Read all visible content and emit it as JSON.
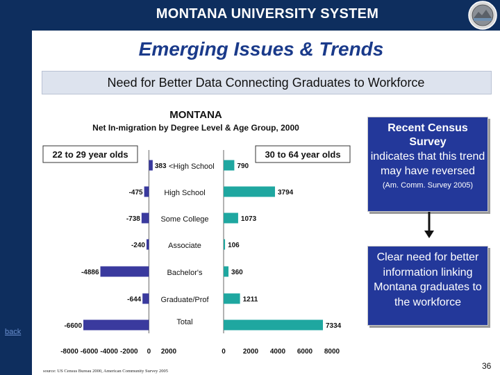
{
  "header": {
    "system_title": "MONTANA UNIVERSITY SYSTEM",
    "seal_icon": "state-seal-icon"
  },
  "slide": {
    "title": "Emerging Issues & Trends",
    "subtitle": "Need for Better Data Connecting Graduates to Workforce",
    "back_link": "back",
    "page_number": "36"
  },
  "callouts": {
    "census": {
      "heading": "Recent Census Survey",
      "body": "indicates that this trend may have reversed",
      "citation": "(Am. Comm. Survey 2005)"
    },
    "need": {
      "body": "Clear need for better information linking Montana graduates to the workforce"
    },
    "arrow_icon": "down-arrow-icon"
  },
  "chart_data": {
    "type": "bar",
    "title": "MONTANA",
    "subtitle": "Net In-migration by Degree Level & Age Group, 2000",
    "categories": [
      "<High School",
      "High School",
      "Some College",
      "Associate",
      "Bachelor's",
      "Graduate/Prof",
      "Total"
    ],
    "source": "source:  US Census Bureau 2000, American Community Survey 2005",
    "series": [
      {
        "name": "22 to 29 year olds",
        "values": [
          383,
          -475,
          -738,
          -240,
          -4886,
          -644,
          -6600
        ],
        "labels": [
          "383",
          "-475",
          "-738",
          "-240",
          "-4886",
          "-644",
          "-6600"
        ],
        "color": "#3a3a9e",
        "xlim": [
          -8000,
          2000
        ],
        "xticks": [
          "-8000",
          "-6000",
          "-4000",
          "-2000",
          "0",
          "2000"
        ]
      },
      {
        "name": "30 to 64 year olds",
        "values": [
          790,
          3794,
          1073,
          106,
          360,
          1211,
          7334
        ],
        "labels": [
          "790",
          "3794",
          "1073",
          "106",
          "360",
          "1211",
          "7334"
        ],
        "color": "#1fa7a0",
        "xlim": [
          0,
          8000
        ],
        "xticks": [
          "0",
          "2000",
          "4000",
          "6000",
          "8000"
        ]
      }
    ],
    "grid": false,
    "legend": "boxed labels above each panel"
  }
}
